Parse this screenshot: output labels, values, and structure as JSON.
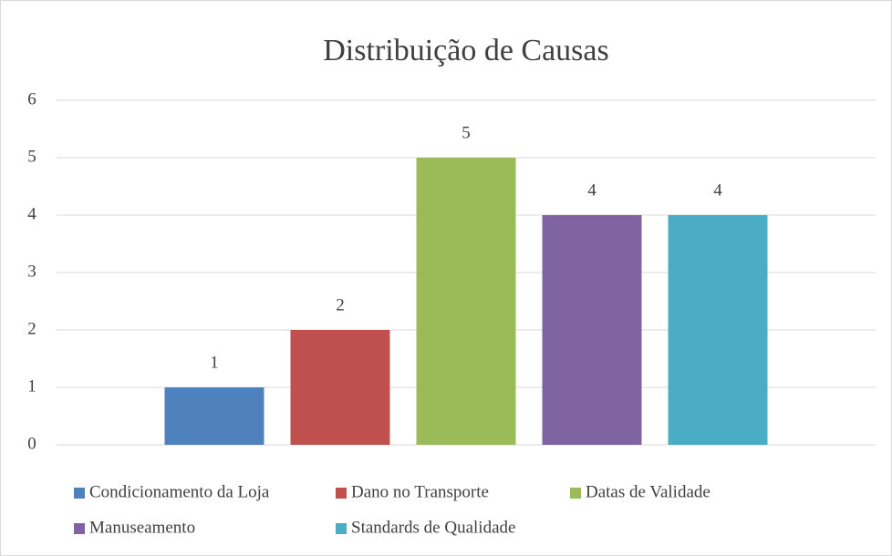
{
  "chart_data": {
    "type": "bar",
    "title": "Distribuição de Causas",
    "categories": [
      null
    ],
    "series": [
      {
        "name": "Condicionamento da Loja",
        "color": "#4f81bd",
        "values": [
          1
        ]
      },
      {
        "name": "Dano no Transporte",
        "color": "#c0504d",
        "values": [
          2
        ]
      },
      {
        "name": "Datas de Validade",
        "color": "#9bbb59",
        "values": [
          5
        ]
      },
      {
        "name": "Manuseamento",
        "color": "#8064a2",
        "values": [
          4
        ]
      },
      {
        "name": "Standards de Qualidade",
        "color": "#4bacc6",
        "values": [
          4
        ]
      }
    ],
    "ylim": [
      0,
      6
    ],
    "yticks": [
      0,
      1,
      2,
      3,
      4,
      5,
      6
    ],
    "grid": true,
    "data_labels": true,
    "legend": "bottom"
  }
}
